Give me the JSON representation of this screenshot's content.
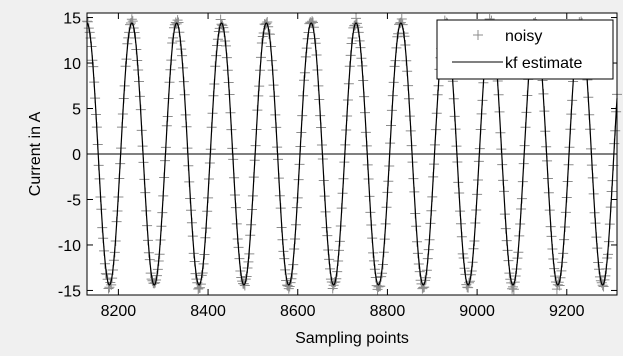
{
  "chart_data": {
    "type": "line",
    "xlabel": "Sampling points",
    "ylabel": "Current in A",
    "xlim": [
      8130,
      9312
    ],
    "ylim": [
      -15.5,
      15.5
    ],
    "xticks": [
      8200,
      8400,
      8600,
      8800,
      9000,
      9200
    ],
    "yticks": [
      -15,
      -10,
      -5,
      0,
      5,
      10,
      15
    ],
    "grid": false,
    "zero_line": 0,
    "legend_position": "top-right",
    "series": [
      {
        "name": "noisy",
        "style": "marker",
        "marker": "+",
        "color": "#8c8c8c",
        "amplitude": 14.6,
        "period": 100,
        "peak_at": 8130
      },
      {
        "name": "kf estimate",
        "style": "line",
        "color": "#000000",
        "amplitude": 14.4,
        "period": 100,
        "peak_at": 8130
      }
    ]
  }
}
